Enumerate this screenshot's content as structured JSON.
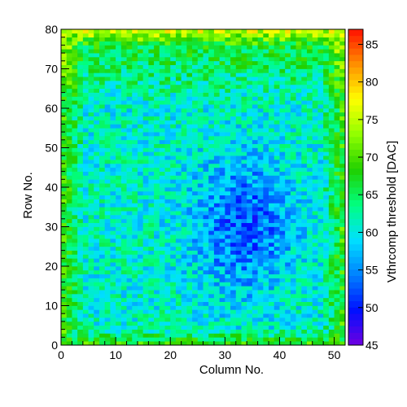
{
  "chart_data": {
    "type": "heatmap",
    "title": "",
    "xlabel": "Column No.",
    "ylabel": "Row No.",
    "zlabel": "Vthrcomp threshold [DAC]",
    "xlim": [
      0,
      52
    ],
    "ylim": [
      0,
      80
    ],
    "zlim": [
      45,
      87
    ],
    "n_columns": 52,
    "n_rows": 80,
    "x_ticks": [
      0,
      10,
      20,
      30,
      40,
      50
    ],
    "y_ticks": [
      0,
      10,
      20,
      30,
      40,
      50,
      60,
      70,
      80
    ],
    "z_ticks": [
      45,
      50,
      55,
      60,
      65,
      70,
      75,
      80,
      85
    ],
    "colormap": "rainbow (violet-blue-cyan-green-yellow-red)",
    "pattern": "edges and top rows high (~65-75, green/yellow); central region around columns 28-40 and rows 15-50 low (~50-55, blue); remainder ~58-64 (cyan)",
    "colorscale": [
      "#7000e0",
      "#0010ff",
      "#0080ff",
      "#00e0ff",
      "#00ff80",
      "#20d000",
      "#90ff00",
      "#ffff00",
      "#ff9000",
      "#ff1000"
    ]
  }
}
